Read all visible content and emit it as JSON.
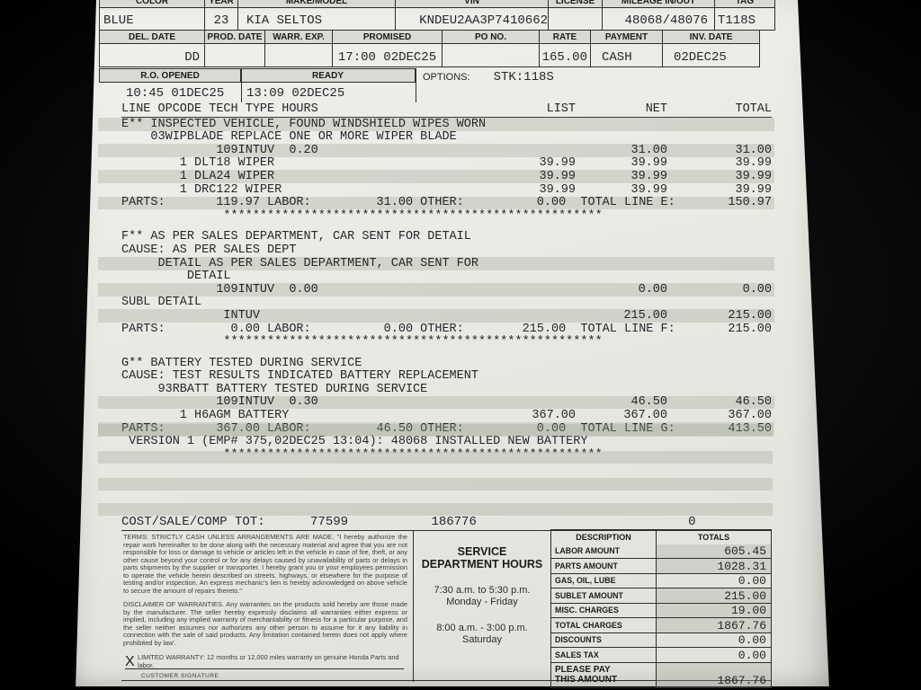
{
  "colors": {
    "backdrop": "#050505",
    "paper": "#e9e9e4",
    "stripe": "#a0a698",
    "ink": "#24272a"
  },
  "header": {
    "row1": {
      "labels": [
        "COLOR",
        "YEAR",
        "MAKE/MODEL",
        "VIN",
        "LICENSE",
        "MILEAGE IN/OUT",
        "TAG"
      ],
      "values": {
        "color": "BLUE",
        "year": "23",
        "make_model": "KIA SELTOS",
        "vin": "KNDEU2AA3P7410662",
        "license": "",
        "mileage": "48068/48076",
        "tag": "T118S"
      }
    },
    "row2": {
      "labels": [
        "DEL. DATE",
        "PROD. DATE",
        "WARR. EXP.",
        "PROMISED",
        "PO NO.",
        "RATE",
        "PAYMENT",
        "INV. DATE"
      ],
      "values": {
        "del_date": "DD",
        "prod_date": "",
        "warr_exp": "",
        "promised": "17:00 02DEC25",
        "po_no": "",
        "rate": "165.00",
        "payment": "CASH",
        "inv_date": "02DEC25"
      }
    },
    "row3": {
      "labels": [
        "R.O. OPENED",
        "READY"
      ],
      "options_label": "OPTIONS:",
      "options_value": "STK:118S",
      "values": {
        "ro_opened": "10:45 01DEC25",
        "ready": "13:09 02DEC25"
      }
    }
  },
  "body": {
    "columns_header": {
      "left": "LINE OPCODE TECH TYPE HOURS",
      "list": "LIST",
      "net": "NET",
      "total": "TOTAL"
    },
    "rows": [
      {
        "t": "E** INSPECTED VEHICLE, FOUND WINDSHIELD WIPES WORN",
        "s": true
      },
      {
        "t": "    03WIPBLADE REPLACE ONE OR MORE WIPER BLADE",
        "s": false
      },
      {
        "t": "             109INTUV  0.20",
        "net": "31.00",
        "total": "31.00",
        "s": true
      },
      {
        "t": "        1 DLT18 WIPER",
        "list": "39.99",
        "net": "39.99",
        "total": "39.99",
        "s": false
      },
      {
        "t": "        1 DLA24 WIPER",
        "list": "39.99",
        "net": "39.99",
        "total": "39.99",
        "s": true
      },
      {
        "t": "        1 DRC122 WIPER",
        "list": "39.99",
        "net": "39.99",
        "total": "39.99",
        "s": false
      },
      {
        "t": "PARTS:       119.97 LABOR:         31.00 OTHER:          0.00  TOTAL LINE E:",
        "total": "150.97",
        "s": true
      },
      {
        "t": "              ****************************************************",
        "s": false
      },
      {
        "t": "F** AS PER SALES DEPARTMENT, CAR SENT FOR DETAIL",
        "s": false,
        "g": true
      },
      {
        "t": "CAUSE: AS PER SALES DEPT",
        "s": false
      },
      {
        "t": "     DETAIL AS PER SALES DEPARTMENT, CAR SENT FOR",
        "s": true
      },
      {
        "t": "         DETAIL",
        "s": false
      },
      {
        "t": "             109INTUV  0.00",
        "net": "0.00",
        "total": "0.00",
        "s": true
      },
      {
        "t": "SUBL DETAIL",
        "s": false
      },
      {
        "t": "              INTUV",
        "net": "215.00",
        "total": "215.00",
        "s": true
      },
      {
        "t": "PARTS:         0.00 LABOR:          0.00 OTHER:        215.00  TOTAL LINE F:",
        "total": "215.00",
        "s": false
      },
      {
        "t": "              ****************************************************",
        "s": false
      },
      {
        "t": "G** BATTERY TESTED DURING SERVICE",
        "s": false,
        "g": true
      },
      {
        "t": "CAUSE: TEST RESULTS INDICATED BATTERY REPLACEMENT",
        "s": false
      },
      {
        "t": "     93RBATT BATTERY TESTED DURING SERVICE",
        "s": false
      },
      {
        "t": "             109INTUV  0.30",
        "net": "46.50",
        "total": "46.50",
        "s": true
      },
      {
        "t": "        1 H6AGM BATTERY",
        "list": "367.00",
        "net": "367.00",
        "total": "367.00",
        "s": false
      },
      {
        "t": "PARTS:       367.00 LABOR:         46.50 OTHER:          0.00  TOTAL LINE G:",
        "total": "413.50",
        "s": true
      },
      {
        "t": " VERSION 1 (EMP# 375,02DEC25 13:04): 48068 INSTALLED NEW BATTERY",
        "s": false
      },
      {
        "t": "              ****************************************************",
        "s": false
      }
    ]
  },
  "cost_row": {
    "text": "COST/SALE/COMP TOT:      77599           186776                            0"
  },
  "footer": {
    "terms": "TERMS: STRICTLY CASH UNLESS ARRANGEMENTS ARE MADE. \"I hereby authorize the repair work hereinafter to be done along with the necessary material and agree that you are not responsible for loss or damage to vehicle or articles left in the vehicle in case of fire, theft, or any other cause beyond your control or for any delays caused by unavailability of parts or delays in parts shipments by the supplier or transporter. I hereby grant you or your employees permission to operate the vehicle herein described on streets, highways, or elsewhere for the purpose of testing and/or inspection. An express mechanic's lien is hereby acknowledged on above vehicle to secure the amount of repairs thereto.\"",
    "disclaimer": "DISCLAIMER OF WARRANTIES. Any warranties on the products sold hereby are those made by the manufacturer. The seller hereby expressly disclaims all warranties either express or implied, including any implied warranty of merchantability or fitness for a particular purpose, and the seller neither assumes nor authorizes any other person to assume for it any liability in connection with the sale of said products. Any limitation contained herein does not apply where prohibited by law'.",
    "warranty": "LIMITED WARRANTY: 12 months or 12,000 miles warranty on genuine Honda Parts and labor.",
    "signature_x": "X",
    "signature_caption": "CUSTOMER SIGNATURE",
    "hours": {
      "title1": "SERVICE",
      "title2": "DEPARTMENT HOURS",
      "weekday_hours": "7:30 a.m. to 5:30 p.m.",
      "weekday_days": "Monday - Friday",
      "saturday_hours": "8:00 a.m. - 3:00 p.m.",
      "saturday_day": "Saturday"
    },
    "totals_table": {
      "col1": "DESCRIPTION",
      "col2": "TOTALS",
      "rows": [
        {
          "label": "LABOR AMOUNT",
          "value": "605.45",
          "s": true
        },
        {
          "label": "PARTS AMOUNT",
          "value": "1028.31",
          "s": true
        },
        {
          "label": "GAS, OIL, LUBE",
          "value": "0.00",
          "s": false
        },
        {
          "label": "SUBLET AMOUNT",
          "value": "215.00",
          "s": true
        },
        {
          "label": "MISC. CHARGES",
          "value": "19.00",
          "s": true
        },
        {
          "label": "TOTAL CHARGES",
          "value": "1867.76",
          "s": true
        },
        {
          "label": "DISCOUNTS",
          "value": "0.00",
          "s": false
        },
        {
          "label": "SALES TAX",
          "value": "0.00",
          "s": false
        }
      ],
      "pay_label1": "PLEASE PAY",
      "pay_label2": "THIS AMOUNT",
      "pay_value": "1867.76"
    }
  }
}
